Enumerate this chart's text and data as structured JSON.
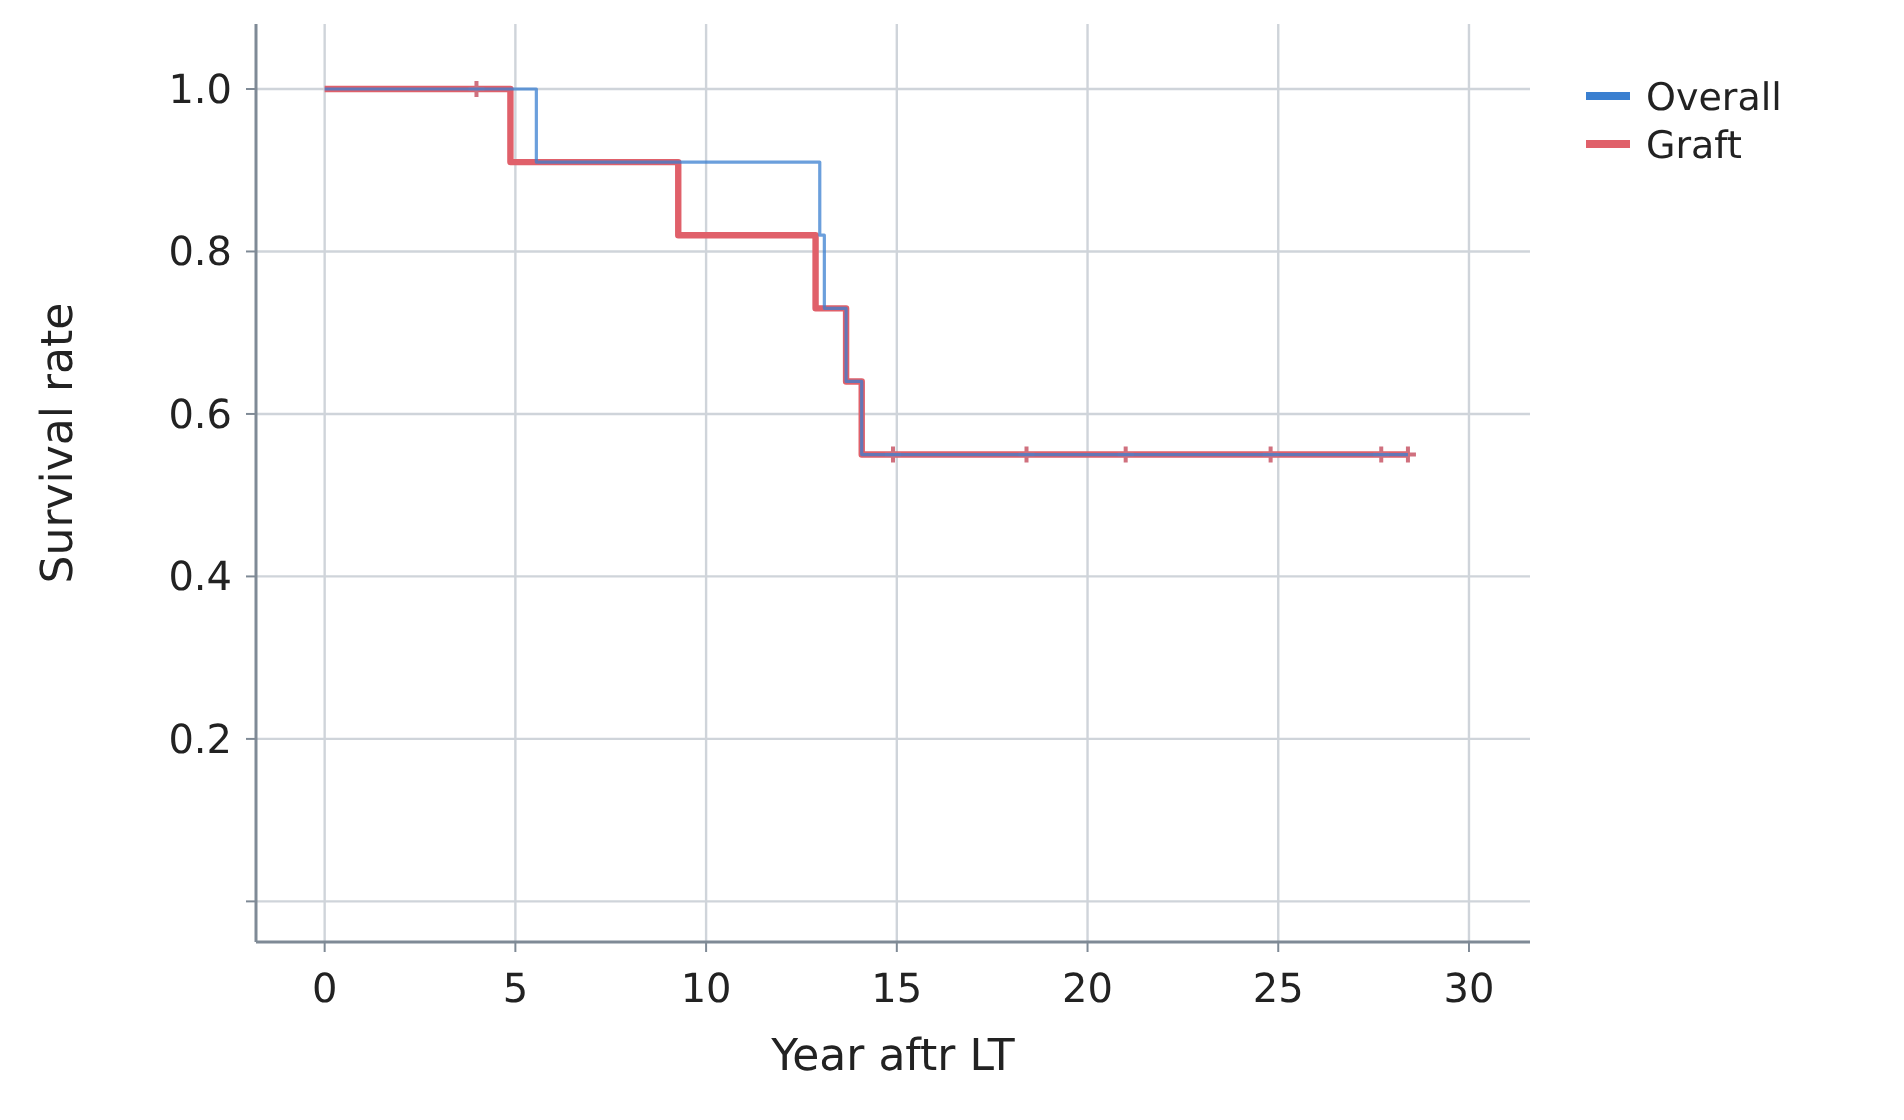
{
  "chart_data": {
    "type": "step",
    "xlabel": "Year aftr LT",
    "ylabel": "Survival rate",
    "xlim": [
      -1.8,
      31.6
    ],
    "xticks": [
      0,
      5,
      10,
      15,
      20,
      25,
      30
    ],
    "ylim": [
      -0.05,
      1.08
    ],
    "yticks": [
      {
        "value": 0,
        "label": null
      },
      0.2,
      0.4,
      0.6,
      0.8,
      {
        "value": 1,
        "label": "1.0"
      }
    ],
    "grid": true,
    "legend": "top right",
    "marker": "none",
    "line_style": "solid",
    "series": [
      {
        "name": "Overall",
        "color": "#3a7fd0",
        "x": [
          0,
          5.55,
          12.98,
          13.1,
          13.67,
          14.08,
          28.4
        ],
        "values": [
          1,
          0.91,
          0.82,
          0.73,
          0.64,
          0.55,
          0.55
        ]
      },
      {
        "name": "Graft",
        "color": "#e0606a",
        "x": [
          0,
          4.87,
          9.27,
          12.87,
          13.67,
          14.08,
          28.4
        ],
        "values": [
          1,
          0.91,
          0.82,
          0.73,
          0.64,
          0.55,
          0.55
        ]
      },
      {
        "type": "scatter",
        "marker": "cross",
        "color": "#d0707e",
        "x": [
          3.98,
          14.9,
          18.4,
          21.0,
          24.8,
          27.7,
          28.4
        ],
        "values": [
          1,
          0.55,
          0.55,
          0.55,
          0.55,
          0.55,
          0.55
        ]
      }
    ]
  }
}
